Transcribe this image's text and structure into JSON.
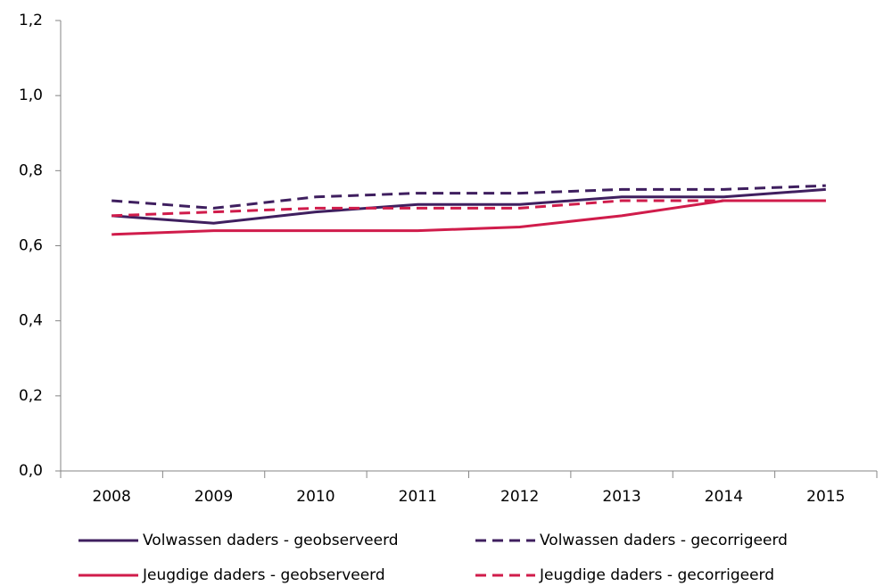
{
  "chart_data": {
    "type": "line",
    "categories": [
      "2008",
      "2009",
      "2010",
      "2011",
      "2012",
      "2013",
      "2014",
      "2015"
    ],
    "series": [
      {
        "name": "Volwassen daders - geobserveerd",
        "color": "#3f1f5f",
        "dashed": false,
        "values": [
          0.68,
          0.66,
          0.69,
          0.71,
          0.71,
          0.73,
          0.73,
          0.75
        ]
      },
      {
        "name": "Volwassen daders - gecorrigeerd",
        "color": "#3f1f5f",
        "dashed": true,
        "values": [
          0.72,
          0.7,
          0.73,
          0.74,
          0.74,
          0.75,
          0.75,
          0.76
        ]
      },
      {
        "name": "Jeugdige daders - geobserveerd",
        "color": "#d01c4b",
        "dashed": false,
        "values": [
          0.63,
          0.64,
          0.64,
          0.64,
          0.65,
          0.68,
          0.72,
          0.72
        ]
      },
      {
        "name": "Jeugdige daders - gecorrigeerd",
        "color": "#d01c4b",
        "dashed": true,
        "values": [
          0.68,
          0.69,
          0.7,
          0.7,
          0.7,
          0.72,
          0.72,
          0.72
        ]
      }
    ],
    "ylim": [
      0,
      1.2
    ],
    "yticks": [
      {
        "value": 0,
        "label": "0,0"
      },
      {
        "value": 0.2,
        "label": "0,2"
      },
      {
        "value": 0.4,
        "label": "0,4"
      },
      {
        "value": 0.6,
        "label": "0,6"
      },
      {
        "value": 0.8,
        "label": "0,8"
      },
      {
        "value": 1.0,
        "label": "1,0"
      },
      {
        "value": 1.2,
        "label": "1,2"
      }
    ],
    "grid": false
  }
}
